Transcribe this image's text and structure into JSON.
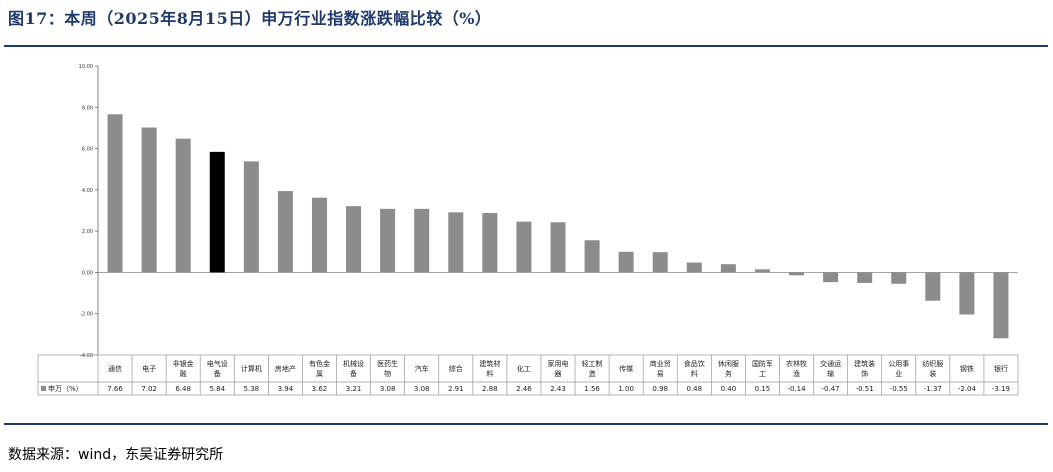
{
  "figure": {
    "title": "图17：本周（2025年8月15日）申万行业指数涨跌幅比较（%）",
    "source": "数据来源：wind，东吴证券研究所"
  },
  "colors": {
    "bar": "#8c8c8c",
    "highlight_bar": "#000000",
    "rule": "#1f3a6e",
    "grid_border": "#999999"
  },
  "chart_data": {
    "type": "bar",
    "categories": [
      [
        "通信"
      ],
      [
        "电子"
      ],
      [
        "非银金",
        "融"
      ],
      [
        "电气设",
        "备"
      ],
      [
        "计算机"
      ],
      [
        "房地产"
      ],
      [
        "有色金",
        "属"
      ],
      [
        "机械设",
        "备"
      ],
      [
        "医药生",
        "物"
      ],
      [
        "汽车"
      ],
      [
        "综合"
      ],
      [
        "建筑材",
        "料"
      ],
      [
        "化工"
      ],
      [
        "家用电",
        "器"
      ],
      [
        "轻工制",
        "造"
      ],
      [
        "传媒"
      ],
      [
        "商业贸",
        "易"
      ],
      [
        "食品饮",
        "料"
      ],
      [
        "休闲服",
        "务"
      ],
      [
        "国防军",
        "工"
      ],
      [
        "农林牧",
        "渔"
      ],
      [
        "交通运",
        "输"
      ],
      [
        "建筑装",
        "饰"
      ],
      [
        "公用事",
        "业"
      ],
      [
        "纺织服",
        "装"
      ],
      [
        "钢铁"
      ],
      [
        "银行"
      ]
    ],
    "series": [
      {
        "name": "申万（%）",
        "values": [
          7.66,
          7.02,
          6.48,
          5.84,
          5.38,
          3.94,
          3.62,
          3.21,
          3.08,
          3.08,
          2.91,
          2.88,
          2.46,
          2.43,
          1.56,
          1.0,
          0.98,
          0.48,
          0.4,
          0.15,
          -0.14,
          -0.47,
          -0.51,
          -0.55,
          -1.37,
          -2.04,
          -3.19
        ],
        "labels": [
          "7.66",
          "7.02",
          "6.48",
          "5.84",
          "5.38",
          "3.94",
          "3.62",
          "3.21",
          "3.08",
          "3.08",
          "2.91",
          "2.88",
          "2.46",
          "2.43",
          "1.56",
          "1.00",
          "0.98",
          "0.48",
          "0.40",
          "0.15",
          "-0.14",
          "-0.47",
          "-0.51",
          "-0.55",
          "-1.37",
          "-2.04",
          "-3.19"
        ]
      }
    ],
    "highlight_index": 3,
    "ylim": [
      -4,
      10
    ],
    "yticks": [
      "10.00",
      "8.00",
      "6.00",
      "4.00",
      "2.00",
      "0.00",
      "-2.00",
      "-4.00"
    ],
    "ytick_values": [
      10,
      8,
      6,
      4,
      2,
      0,
      -2,
      -4
    ],
    "xlabel": "",
    "ylabel": "",
    "grid": false,
    "legend": "data-table-left"
  }
}
